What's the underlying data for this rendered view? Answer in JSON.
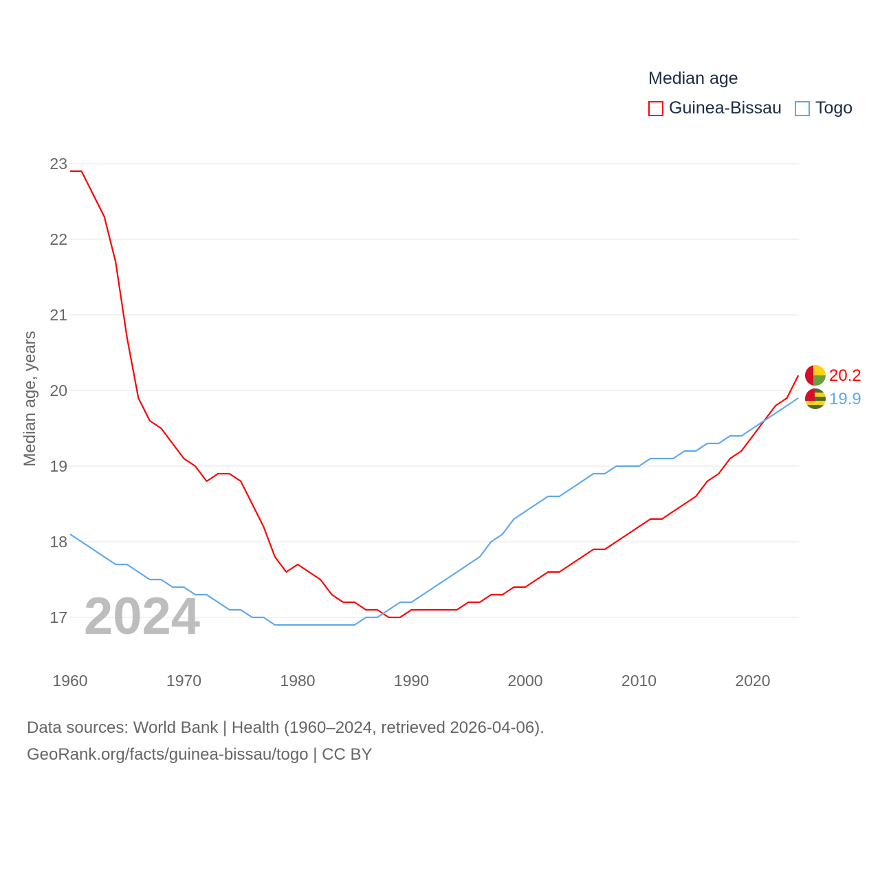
{
  "chart_data": {
    "type": "line",
    "title": "Median age",
    "ylabel": "Median age, years",
    "xlabel": "",
    "xlim": [
      1960,
      2024
    ],
    "ylim": [
      16.5,
      23.1
    ],
    "x_ticks": [
      1960,
      1970,
      1980,
      1990,
      2000,
      2010,
      2020
    ],
    "y_ticks": [
      17,
      18,
      19,
      20,
      21,
      22,
      23
    ],
    "grid": true,
    "legend_position": "top-right",
    "year_label": "2024",
    "x": [
      1960,
      1961,
      1962,
      1963,
      1964,
      1965,
      1966,
      1967,
      1968,
      1969,
      1970,
      1971,
      1972,
      1973,
      1974,
      1975,
      1976,
      1977,
      1978,
      1979,
      1980,
      1981,
      1982,
      1983,
      1984,
      1985,
      1986,
      1987,
      1988,
      1989,
      1990,
      1991,
      1992,
      1993,
      1994,
      1995,
      1996,
      1997,
      1998,
      1999,
      2000,
      2001,
      2002,
      2003,
      2004,
      2005,
      2006,
      2007,
      2008,
      2009,
      2010,
      2011,
      2012,
      2013,
      2014,
      2015,
      2016,
      2017,
      2018,
      2019,
      2020,
      2021,
      2022,
      2023,
      2024
    ],
    "series": [
      {
        "name": "Guinea-Bissau",
        "color": "#ff0000",
        "end_label": "20.2",
        "values": [
          22.9,
          22.9,
          22.6,
          22.3,
          21.7,
          20.7,
          19.9,
          19.6,
          19.5,
          19.3,
          19.1,
          19.0,
          18.8,
          18.9,
          18.9,
          18.8,
          18.5,
          18.2,
          17.8,
          17.6,
          17.7,
          17.6,
          17.5,
          17.3,
          17.2,
          17.2,
          17.1,
          17.1,
          17.0,
          17.0,
          17.1,
          17.1,
          17.1,
          17.1,
          17.1,
          17.2,
          17.2,
          17.3,
          17.3,
          17.4,
          17.4,
          17.5,
          17.6,
          17.6,
          17.7,
          17.8,
          17.9,
          17.9,
          18.0,
          18.1,
          18.2,
          18.3,
          18.3,
          18.4,
          18.5,
          18.6,
          18.8,
          18.9,
          19.1,
          19.2,
          19.4,
          19.6,
          19.8,
          19.9,
          20.2
        ]
      },
      {
        "name": "Togo",
        "color": "#5ea9ee",
        "end_label": "19.9",
        "values": [
          18.1,
          18.0,
          17.9,
          17.8,
          17.7,
          17.7,
          17.6,
          17.5,
          17.5,
          17.4,
          17.4,
          17.3,
          17.3,
          17.2,
          17.1,
          17.1,
          17.0,
          17.0,
          16.9,
          16.9,
          16.9,
          16.9,
          16.9,
          16.9,
          16.9,
          16.9,
          17.0,
          17.0,
          17.1,
          17.2,
          17.2,
          17.3,
          17.4,
          17.5,
          17.6,
          17.7,
          17.8,
          18.0,
          18.1,
          18.3,
          18.4,
          18.5,
          18.6,
          18.6,
          18.7,
          18.8,
          18.9,
          18.9,
          19.0,
          19.0,
          19.0,
          19.1,
          19.1,
          19.1,
          19.2,
          19.2,
          19.3,
          19.3,
          19.4,
          19.4,
          19.5,
          19.6,
          19.7,
          19.8,
          19.9
        ]
      }
    ]
  },
  "footer": {
    "line1": "Data sources: World Bank | Health (1960–2024, retrieved 2026-04-06).",
    "line2": "GeoRank.org/facts/guinea-bissau/togo | CC BY"
  }
}
